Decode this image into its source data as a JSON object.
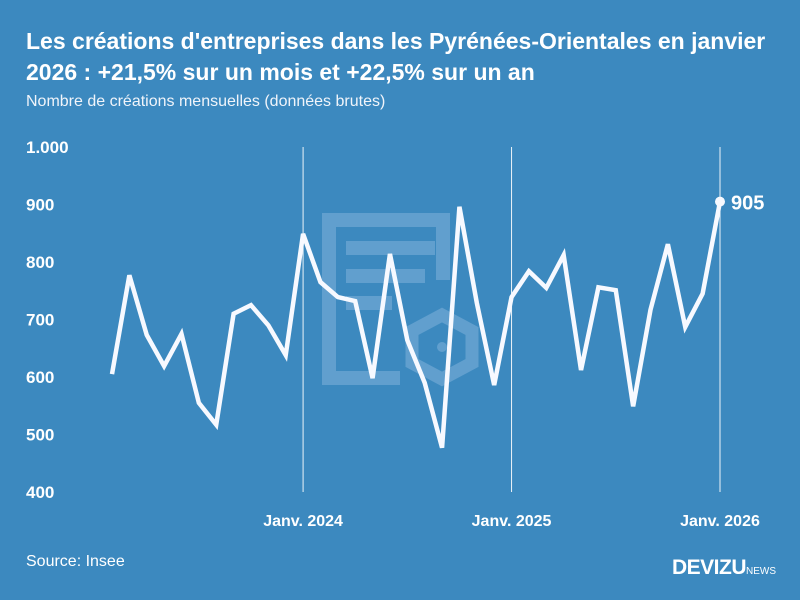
{
  "header": {
    "title": "Les créations d'entreprises dans les Pyrénées-Orientales en janvier 2026 : +21,5% sur un mois et +22,5% sur un an",
    "subtitle": "Nombre de créations mensuelles (données brutes)"
  },
  "footer": {
    "source": "Source: Insee",
    "logo_main": "DEVIZU",
    "logo_suffix": "NEWS"
  },
  "chart_data": {
    "type": "line",
    "ylim": [
      400,
      1000
    ],
    "yticks": [
      400,
      500,
      600,
      700,
      800,
      900,
      1000
    ],
    "ytick_labels": [
      "400",
      "500",
      "600",
      "700",
      "800",
      "900",
      "1.000"
    ],
    "xtick_labels": [
      {
        "index": 11,
        "label": "Janv. 2024"
      },
      {
        "index": 23,
        "label": "Janv. 2025"
      },
      {
        "index": 35,
        "label": "Janv. 2026"
      }
    ],
    "x": [
      "2023-02",
      "2023-03",
      "2023-04",
      "2023-05",
      "2023-06",
      "2023-07",
      "2023-08",
      "2023-09",
      "2023-10",
      "2023-11",
      "2023-12",
      "2024-01",
      "2024-02",
      "2024-03",
      "2024-04",
      "2024-05",
      "2024-06",
      "2024-07",
      "2024-08",
      "2024-09",
      "2024-10",
      "2024-11",
      "2024-12",
      "2025-01",
      "2025-02",
      "2025-03",
      "2025-04",
      "2025-05",
      "2025-06",
      "2025-07",
      "2025-08",
      "2025-09",
      "2025-10",
      "2025-11",
      "2025-12",
      "2026-01"
    ],
    "values": [
      605,
      777,
      673,
      619,
      675,
      555,
      517,
      710,
      725,
      690,
      638,
      849,
      765,
      739,
      732,
      598,
      814,
      664,
      590,
      477,
      896,
      729,
      586,
      739,
      784,
      755,
      812,
      612,
      756,
      751,
      549,
      717,
      831,
      687,
      745,
      905
    ],
    "last_label": "905",
    "line_color": "#f7f9ff",
    "background": "#3c89bf",
    "grid": false
  }
}
